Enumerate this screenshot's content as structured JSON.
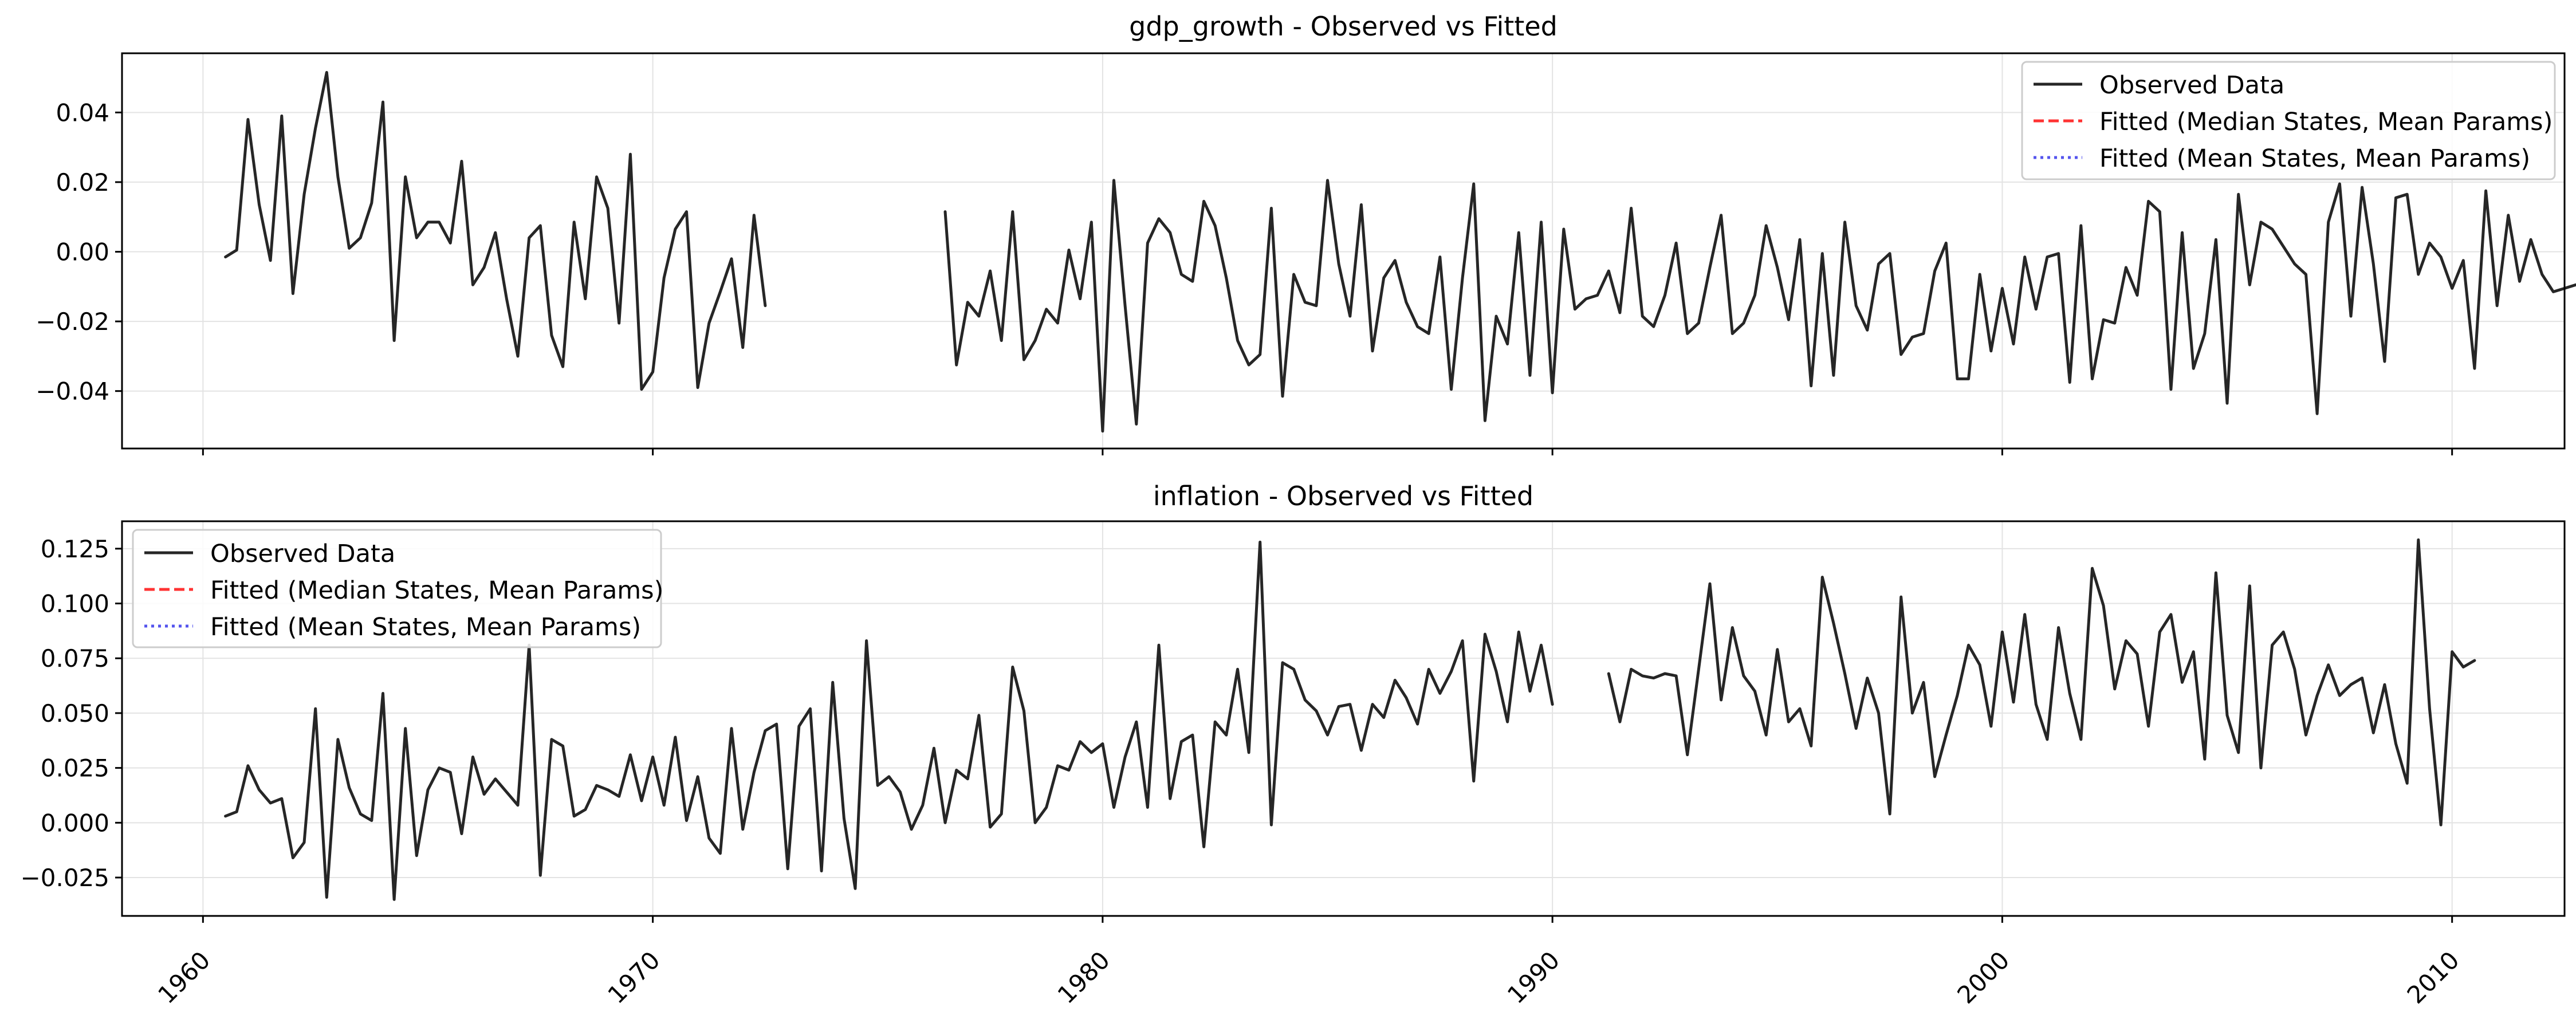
{
  "chart_data": [
    {
      "type": "line",
      "title": "gdp_growth - Observed vs Fitted",
      "xlabel": "",
      "ylabel": "",
      "xlim": [
        1958.2,
        2012.5
      ],
      "ylim": [
        -0.0565,
        0.057
      ],
      "xticks": [
        "1960",
        "1970",
        "1980",
        "1990",
        "2000",
        "2010"
      ],
      "yticks": [
        "−0.04",
        "−0.02",
        "0.00",
        "0.02",
        "0.04"
      ],
      "ytick_values": [
        -0.04,
        -0.02,
        0.0,
        0.02,
        0.04
      ],
      "grid": true,
      "legend_position": "top-right",
      "legend": [
        "Observed Data",
        "Fitted (Median States, Mean Params)",
        "Fitted (Mean States, Mean Params)"
      ],
      "series": [
        {
          "name": "Observed Data",
          "color": "#262626",
          "dash": "solid",
          "x_start": 1960.5,
          "x_step": 0.25,
          "values": [
            -0.0015,
            0.0005,
            0.038,
            0.0135,
            -0.0025,
            0.039,
            -0.012,
            0.0165,
            0.0355,
            0.0515,
            0.0215,
            0.001,
            0.004,
            0.014,
            0.043,
            -0.0255,
            0.0215,
            0.004,
            0.0085,
            0.0085,
            0.0025,
            0.026,
            -0.0095,
            -0.0045,
            0.0055,
            -0.0135,
            -0.03,
            0.004,
            0.0075,
            -0.024,
            -0.033,
            0.0085,
            -0.0135,
            0.0215,
            0.0125,
            -0.0205,
            0.028,
            -0.0395,
            -0.0345,
            -0.0075,
            0.0065,
            0.0115,
            -0.039,
            -0.0205,
            -0.0115,
            -0.002,
            -0.0275,
            0.0105,
            -0.0155,
            null,
            null,
            null,
            null,
            null,
            null,
            null,
            null,
            null,
            null,
            null,
            null,
            null,
            null,
            null,
            0.0115,
            -0.0325,
            -0.0145,
            -0.0185,
            -0.0055,
            -0.0255,
            0.0115,
            -0.031,
            -0.0255,
            -0.0165,
            -0.0205,
            0.0005,
            -0.0135,
            0.0085,
            -0.0515,
            0.0205,
            -0.0155,
            -0.0495,
            0.0025,
            0.0095,
            0.0055,
            -0.0065,
            -0.0085,
            0.0145,
            0.0075,
            -0.0075,
            -0.0255,
            -0.0325,
            -0.0295,
            0.0125,
            -0.0415,
            -0.0065,
            -0.0145,
            -0.0155,
            0.0205,
            -0.0035,
            -0.0185,
            0.0135,
            -0.0285,
            -0.0075,
            -0.0025,
            -0.0145,
            -0.0215,
            -0.0235,
            -0.0015,
            -0.0395,
            -0.0075,
            0.0195,
            -0.0485,
            -0.0185,
            -0.0265,
            0.0055,
            -0.0355,
            0.0085,
            -0.0405,
            0.0065,
            -0.0165,
            -0.0135,
            -0.0125,
            -0.0055,
            -0.0175,
            0.0125,
            -0.0185,
            -0.0215,
            -0.0125,
            0.0025,
            -0.0235,
            -0.0205,
            -0.0045,
            0.0105,
            -0.0235,
            -0.0205,
            -0.0125,
            0.0075,
            -0.0045,
            -0.0195,
            0.0035,
            -0.0385,
            -0.0005,
            -0.0355,
            0.0085,
            -0.0155,
            -0.0225,
            -0.0035,
            -0.0005,
            -0.0295,
            -0.0245,
            -0.0235,
            -0.0055,
            0.0025,
            -0.0365,
            -0.0365,
            -0.0065,
            -0.0285,
            -0.0105,
            -0.0265,
            -0.0015,
            -0.0165,
            -0.0015,
            -0.0005,
            -0.0375,
            0.0075,
            -0.0365,
            -0.0195,
            -0.0205,
            -0.0045,
            -0.0125,
            0.0145,
            0.0115,
            -0.0395,
            0.0055,
            -0.0335,
            -0.0235,
            0.0035,
            -0.0435,
            0.0165,
            -0.0095,
            0.0085,
            0.0065,
            0.0015,
            -0.0035,
            -0.0065,
            -0.0465,
            0.0085,
            0.0195,
            -0.0185,
            0.0185,
            -0.0035,
            -0.0315,
            0.0155,
            0.0165,
            -0.0065,
            0.0025,
            -0.0015,
            -0.0105,
            -0.0025,
            -0.0335,
            0.0175,
            -0.0155,
            0.0105,
            -0.0085,
            0.0035,
            -0.0065,
            -0.0115,
            -0.0105,
            -0.0095
          ]
        }
      ]
    },
    {
      "type": "line",
      "title": "inflation - Observed vs Fitted",
      "xlabel": "",
      "ylabel": "",
      "xlim": [
        1958.2,
        2012.5
      ],
      "ylim": [
        -0.0425,
        0.1375
      ],
      "xticks": [
        "1960",
        "1970",
        "1980",
        "1990",
        "2000",
        "2010"
      ],
      "yticks": [
        "−0.025",
        "0.000",
        "0.025",
        "0.050",
        "0.075",
        "0.100",
        "0.125"
      ],
      "ytick_values": [
        -0.025,
        0.0,
        0.025,
        0.05,
        0.075,
        0.1,
        0.125
      ],
      "grid": true,
      "legend_position": "top-left",
      "legend": [
        "Observed Data",
        "Fitted (Median States, Mean Params)",
        "Fitted (Mean States, Mean Params)"
      ],
      "series": [
        {
          "name": "Observed Data",
          "color": "#262626",
          "dash": "solid",
          "x_start": 1960.5,
          "x_step": 0.25,
          "values": [
            0.003,
            0.005,
            0.026,
            0.015,
            0.009,
            0.011,
            -0.016,
            -0.009,
            0.052,
            -0.034,
            0.038,
            0.016,
            0.004,
            0.001,
            0.059,
            -0.035,
            0.043,
            -0.015,
            0.015,
            0.025,
            0.023,
            -0.005,
            0.03,
            0.013,
            0.02,
            0.014,
            0.008,
            0.081,
            -0.024,
            0.038,
            0.035,
            0.003,
            0.006,
            0.017,
            0.015,
            0.012,
            0.031,
            0.01,
            0.03,
            0.008,
            0.039,
            0.001,
            0.021,
            -0.007,
            -0.014,
            0.043,
            -0.003,
            0.023,
            0.042,
            0.045,
            -0.021,
            0.044,
            0.052,
            -0.022,
            0.064,
            0.002,
            -0.03,
            0.083,
            0.017,
            0.021,
            0.014,
            -0.003,
            0.008,
            0.034,
            0.0,
            0.024,
            0.02,
            0.049,
            -0.002,
            0.004,
            0.071,
            0.051,
            0.0,
            0.007,
            0.026,
            0.024,
            0.037,
            0.032,
            0.036,
            0.007,
            0.03,
            0.046,
            0.007,
            0.081,
            0.011,
            0.037,
            0.04,
            -0.011,
            0.046,
            0.04,
            0.07,
            0.032,
            0.128,
            -0.001,
            0.073,
            0.07,
            0.056,
            0.051,
            0.04,
            0.053,
            0.054,
            0.033,
            0.054,
            0.048,
            0.065,
            0.057,
            0.045,
            0.07,
            0.059,
            0.069,
            0.083,
            0.019,
            0.086,
            0.069,
            0.046,
            0.087,
            0.06,
            0.081,
            0.054,
            null,
            null,
            null,
            null,
            0.068,
            0.046,
            0.07,
            0.067,
            0.066,
            0.068,
            0.067,
            0.031,
            0.07,
            0.109,
            0.056,
            0.089,
            0.067,
            0.06,
            0.04,
            0.079,
            0.046,
            0.052,
            0.035,
            0.112,
            0.091,
            0.068,
            0.043,
            0.066,
            0.05,
            0.004,
            0.103,
            0.05,
            0.064,
            0.021,
            0.04,
            0.058,
            0.081,
            0.072,
            0.044,
            0.087,
            0.055,
            0.095,
            0.054,
            0.038,
            0.089,
            0.059,
            0.038,
            0.116,
            0.099,
            0.061,
            0.083,
            0.077,
            0.044,
            0.087,
            0.095,
            0.064,
            0.078,
            0.029,
            0.114,
            0.049,
            0.032,
            0.108,
            0.025,
            0.081,
            0.087,
            0.07,
            0.04,
            0.058,
            0.072,
            0.058,
            0.063,
            0.066,
            0.041,
            0.063,
            0.036,
            0.018,
            0.129,
            0.052,
            -0.001,
            0.078,
            0.071,
            0.074
          ]
        }
      ]
    }
  ]
}
